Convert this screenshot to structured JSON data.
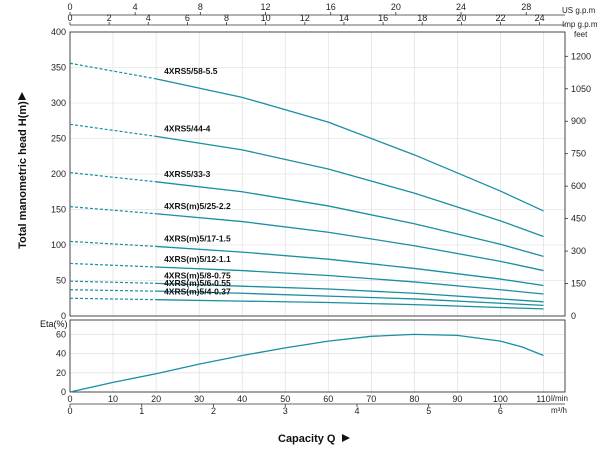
{
  "chart_data": [
    {
      "type": "line",
      "ylabel": "Total manometric head H(m)",
      "ylabel_right_unit": "feet",
      "top_axis_units": [
        "US g.p.m",
        "Imp g.p.m"
      ],
      "us_gpm_ticks": [
        0,
        4,
        8,
        12,
        16,
        20,
        24,
        28
      ],
      "imp_gpm_ticks": [
        0,
        2,
        4,
        6,
        8,
        10,
        12,
        14,
        16,
        18,
        20,
        22,
        24
      ],
      "y_ticks": [
        0,
        50,
        100,
        150,
        200,
        250,
        300,
        350,
        400
      ],
      "feet_ticks": [
        150,
        300,
        450,
        600,
        750,
        900,
        1050,
        1200
      ],
      "ylim": [
        0,
        400
      ],
      "xlim": [
        0,
        115
      ],
      "grid": true,
      "series": [
        {
          "name": "4XRS5/58-5.5",
          "dashed": [
            [
              0,
              356
            ],
            [
              20,
              334
            ]
          ],
          "solid": [
            [
              20,
              334
            ],
            [
              40,
              308
            ],
            [
              60,
              273
            ],
            [
              80,
              227
            ],
            [
              100,
              176
            ],
            [
              110,
              148
            ]
          ]
        },
        {
          "name": "4XRS5/44-4",
          "dashed": [
            [
              0,
              270
            ],
            [
              20,
              253
            ]
          ],
          "solid": [
            [
              20,
              253
            ],
            [
              40,
              234
            ],
            [
              60,
              207
            ],
            [
              80,
              173
            ],
            [
              100,
              134
            ],
            [
              110,
              112
            ]
          ]
        },
        {
          "name": "4XRS5/33-3",
          "dashed": [
            [
              0,
              202
            ],
            [
              20,
              189
            ]
          ],
          "solid": [
            [
              20,
              189
            ],
            [
              40,
              175
            ],
            [
              60,
              155
            ],
            [
              80,
              130
            ],
            [
              100,
              101
            ],
            [
              110,
              84
            ]
          ]
        },
        {
          "name": "4XRS(m)5/25-2.2",
          "dashed": [
            [
              0,
              154
            ],
            [
              20,
              144
            ]
          ],
          "solid": [
            [
              20,
              144
            ],
            [
              40,
              133
            ],
            [
              60,
              118
            ],
            [
              80,
              99
            ],
            [
              100,
              77
            ],
            [
              110,
              64
            ]
          ]
        },
        {
          "name": "4XRS(m)5/17-1.5",
          "dashed": [
            [
              0,
              105
            ],
            [
              20,
              98
            ]
          ],
          "solid": [
            [
              20,
              98
            ],
            [
              40,
              90
            ],
            [
              60,
              80
            ],
            [
              80,
              67
            ],
            [
              100,
              52
            ],
            [
              110,
              43
            ]
          ]
        },
        {
          "name": "4XRS(m)5/12-1.1",
          "dashed": [
            [
              0,
              74
            ],
            [
              20,
              69
            ]
          ],
          "solid": [
            [
              20,
              69
            ],
            [
              40,
              64
            ],
            [
              60,
              57
            ],
            [
              80,
              48
            ],
            [
              100,
              37
            ],
            [
              110,
              31
            ]
          ]
        },
        {
          "name": "4XRS(m)5/8-0.75",
          "dashed": [
            [
              0,
              49
            ],
            [
              20,
              46
            ]
          ],
          "solid": [
            [
              20,
              46
            ],
            [
              40,
              42
            ],
            [
              60,
              38
            ],
            [
              80,
              32
            ],
            [
              100,
              24
            ],
            [
              110,
              20
            ]
          ]
        },
        {
          "name": "4XRS(m)5/6-0.55",
          "dashed": [
            [
              0,
              37
            ],
            [
              20,
              35
            ]
          ],
          "solid": [
            [
              20,
              35
            ],
            [
              40,
              32
            ],
            [
              60,
              28
            ],
            [
              80,
              24
            ],
            [
              100,
              18
            ],
            [
              110,
              15
            ]
          ]
        },
        {
          "name": "4XRS(m)5/4-0.37",
          "dashed": [
            [
              0,
              25
            ],
            [
              20,
              23
            ]
          ],
          "solid": [
            [
              20,
              23
            ],
            [
              40,
              21
            ],
            [
              60,
              19
            ],
            [
              80,
              16
            ],
            [
              100,
              12
            ],
            [
              110,
              10
            ]
          ]
        }
      ]
    },
    {
      "type": "line",
      "ylabel": "Eta(%)",
      "xlabel": "Capacity Q",
      "x_units": [
        "l/min",
        "m³/h"
      ],
      "x_ticks": [
        0,
        10,
        20,
        30,
        40,
        50,
        60,
        70,
        80,
        90,
        100,
        110
      ],
      "m3h_ticks": [
        0,
        1,
        2,
        3,
        4,
        5,
        6
      ],
      "y_ticks": [
        0,
        20,
        40,
        60
      ],
      "ylim": [
        0,
        75
      ],
      "xlim": [
        0,
        115
      ],
      "grid": true,
      "series": [
        {
          "values": [
            [
              0,
              0
            ],
            [
              10,
              10
            ],
            [
              20,
              19
            ],
            [
              30,
              29
            ],
            [
              40,
              38
            ],
            [
              50,
              46
            ],
            [
              60,
              53
            ],
            [
              70,
              58
            ],
            [
              80,
              60
            ],
            [
              90,
              59
            ],
            [
              100,
              53
            ],
            [
              105,
              47
            ],
            [
              110,
              38
            ]
          ]
        }
      ]
    }
  ],
  "colors": {
    "curve": "#1a8fa0",
    "grid": "#d9d9d9",
    "frame": "#333333"
  }
}
